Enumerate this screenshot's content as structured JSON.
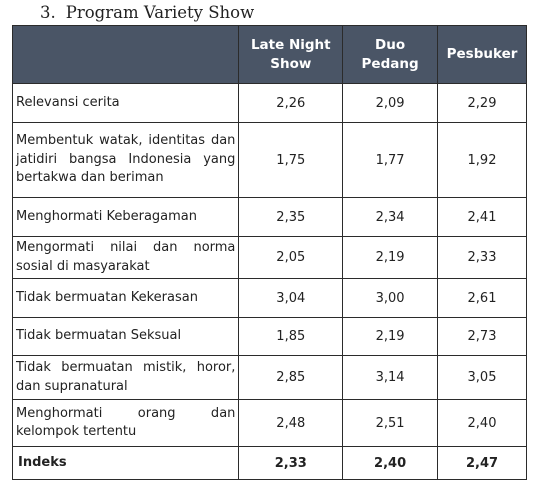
{
  "section": {
    "number": "3.",
    "title": "Program Variety Show"
  },
  "columns": [
    "",
    "Late Night Show",
    "Duo Pedang",
    "Pesbuker"
  ],
  "rows": [
    {
      "label": "Relevansi cerita",
      "values": [
        "2,26",
        "2,09",
        "2,29"
      ]
    },
    {
      "label": "Membentuk watak, identitas dan jatidiri bangsa Indonesia yang bertakwa dan beriman",
      "values": [
        "1,75",
        "1,77",
        "1,92"
      ]
    },
    {
      "label": "Menghormati Keberagaman",
      "values": [
        "2,35",
        "2,34",
        "2,41"
      ]
    },
    {
      "label": "Mengormati nilai dan norma sosial di masyarakat",
      "values": [
        "2,05",
        "2,19",
        "2,33"
      ]
    },
    {
      "label": "Tidak bermuatan Kekerasan",
      "values": [
        "3,04",
        "3,00",
        "2,61"
      ]
    },
    {
      "label": "Tidak bermuatan Seksual",
      "values": [
        "1,85",
        "2,19",
        "2,73"
      ]
    },
    {
      "label": "Tidak bermuatan mistik, horor, dan supranatural",
      "values": [
        "2,85",
        "3,14",
        "3,05"
      ]
    },
    {
      "label": "Menghormati orang dan kelompok tertentu",
      "values": [
        "2,48",
        "2,51",
        "2,40"
      ]
    }
  ],
  "total": {
    "label": "Indeks",
    "values": [
      "2,33",
      "2,40",
      "2,47"
    ]
  }
}
